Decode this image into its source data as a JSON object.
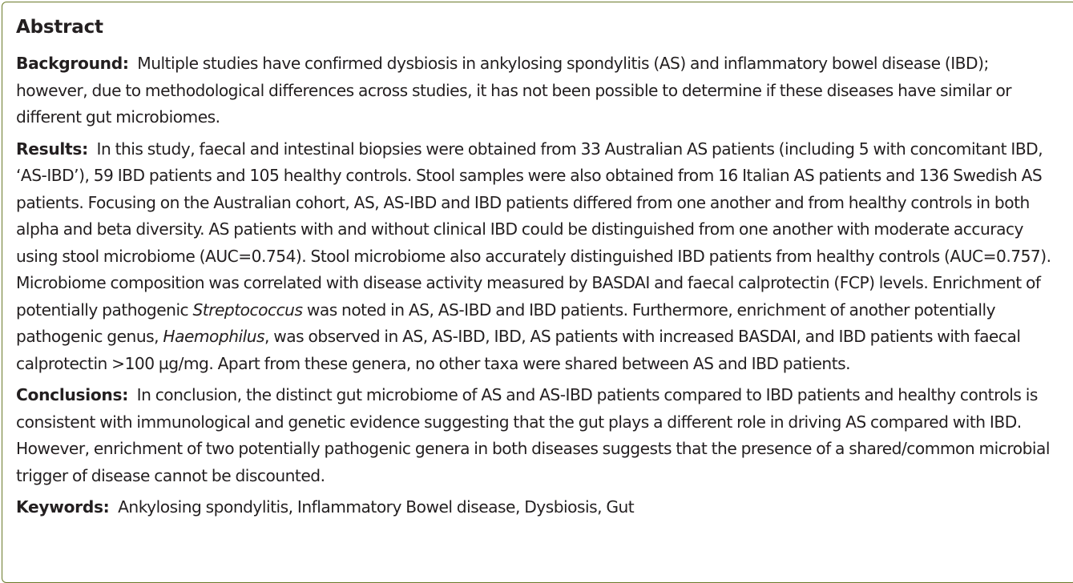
{
  "abstract": {
    "heading": "Abstract",
    "background": {
      "label": "Background:",
      "text": "Multiple studies have confirmed dysbiosis in ankylosing spondylitis (AS) and inflammatory bowel disease (IBD); however, due to methodological differences across studies, it has not been possible to determine if these diseases have similar or different gut microbiomes."
    },
    "results": {
      "label": "Results:",
      "text_1": "In this study, faecal and intestinal biopsies were obtained from 33 Australian AS patients (including 5 with concomitant IBD, ‘AS-IBD’), 59 IBD patients and 105 healthy controls. Stool samples were also obtained from 16 Italian AS patients and 136 Swedish AS patients. Focusing on the Australian cohort, AS, AS-IBD and IBD patients differed from one another and from healthy controls in both alpha and beta diversity. AS patients with and without clinical IBD could be distinguished from one another with moderate accuracy using stool microbiome (AUC=0.754). Stool microbiome also accurately distinguished IBD patients from healthy controls (AUC=0.757). Microbiome composition was correlated with disease activity measured by BASDAI and faecal calprotectin (FCP) levels. Enrichment of potentially pathogenic",
      "genus_1": "Streptococcus",
      "text_2": "was noted in AS, AS-IBD and IBD patients. Furthermore, enrichment of another potentially pathogenic genus,",
      "genus_2": "Haemophilus",
      "text_3": ", was observed in AS, AS-IBD, IBD, AS patients with increased BASDAI, and IBD patients with faecal calprotectin >100 µg/mg. Apart from these genera, no other taxa were shared between AS and IBD patients."
    },
    "conclusions": {
      "label": "Conclusions:",
      "text": "In conclusion, the distinct gut microbiome of AS and AS-IBD patients compared to IBD patients and healthy controls is consistent with immunological and genetic evidence suggesting that the gut plays a different role in driving AS compared with IBD. However, enrichment of two potentially pathogenic genera in both diseases suggests that the presence of a shared/common microbial trigger of disease cannot be discounted."
    },
    "keywords": {
      "label": "Keywords:",
      "text": "Ankylosing spondylitis, Inflammatory Bowel disease, Dysbiosis, Gut"
    }
  },
  "colors": {
    "border": "#6b7a2a",
    "text": "#231f20"
  }
}
